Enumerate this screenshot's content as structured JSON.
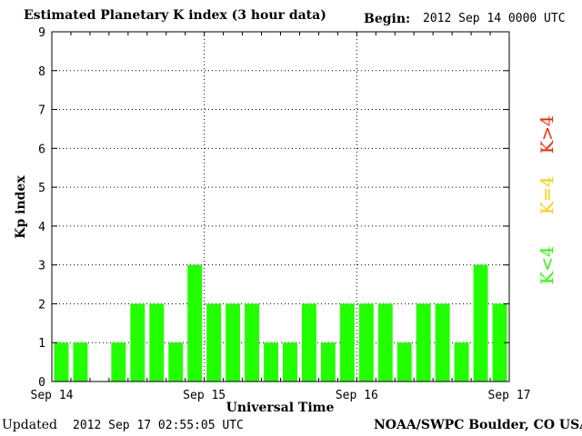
{
  "header": {
    "title": "Estimated Planetary K index (3 hour data)",
    "begin_label": "Begin:",
    "begin_value": "2012 Sep 14 0000 UTC"
  },
  "footer": {
    "updated_label": "Updated",
    "updated_value": "2012 Sep 17 02:55:05 UTC",
    "credit": "NOAA/SWPC Boulder, CO USA"
  },
  "legend": {
    "low": "K<4",
    "mid": "K=4",
    "high": "K>4"
  },
  "colors": {
    "bar": "#22ff00",
    "low": "#22ff00",
    "mid": "#ffcc00",
    "high": "#ff2200",
    "grid": "#000000"
  },
  "chart_data": {
    "type": "bar",
    "title": "Estimated Planetary K index (3 hour data)",
    "xlabel": "Universal Time",
    "ylabel": "Kp index",
    "ylim": [
      0,
      9
    ],
    "yticks": [
      "0",
      "1",
      "2",
      "3",
      "4",
      "5",
      "6",
      "7",
      "8",
      "9"
    ],
    "xticks": [
      "Sep 14",
      "Sep 15",
      "Sep 16",
      "Sep 17"
    ],
    "values": [
      1,
      1,
      0,
      1,
      2,
      2,
      1,
      3,
      2,
      2,
      2,
      1,
      1,
      2,
      1,
      2,
      2,
      2,
      1,
      2,
      2,
      1,
      3,
      2
    ],
    "bar_labels": [
      "1",
      "1",
      "0",
      "1",
      "2",
      "2",
      "1",
      "3",
      "2",
      "2",
      "2",
      "1",
      "1",
      "2",
      "1",
      "2",
      "2",
      "2",
      "1",
      "2",
      "2",
      "1",
      "3",
      "2"
    ],
    "grid": true,
    "legend_position": "right"
  }
}
